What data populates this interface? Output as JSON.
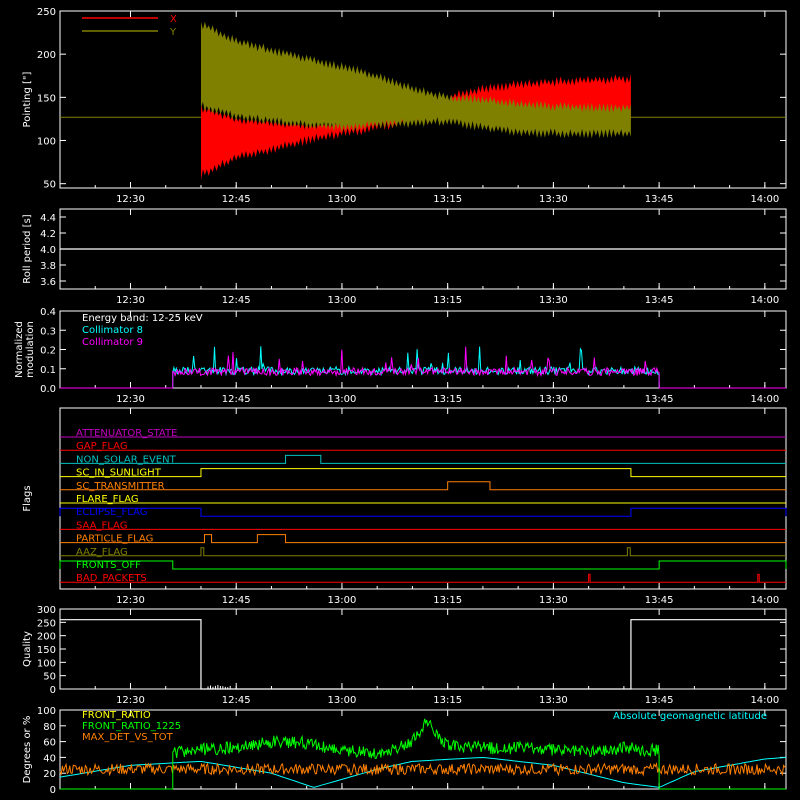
{
  "colors": {
    "background": "#000000",
    "axes": "#ffffff",
    "x": "#ff0000",
    "y": "#808000",
    "cyan": "#00ffff",
    "magenta": "#ff00ff",
    "green": "#00ff00",
    "orange": "#ff8000",
    "yellow": "#ffff00",
    "blue": "#0000ff",
    "red": "#ff0000",
    "olive": "#808000",
    "purple": "#c000c0",
    "white": "#ffffff"
  },
  "chart_data": [
    {
      "id": "pointing",
      "type": "area",
      "ylabel": "Pointing [\"]",
      "ylim": [
        45,
        250
      ],
      "yticks": [
        50,
        100,
        150,
        200,
        250
      ],
      "xlim": [
        "12:20",
        "14:03"
      ],
      "xticks": [
        "12:30",
        "12:45",
        "13:00",
        "13:15",
        "13:30",
        "13:45",
        "14:00"
      ],
      "legend": {
        "placement": "top-left",
        "entries": [
          {
            "name": "X",
            "color": "#ff0000"
          },
          {
            "name": "Y",
            "color": "#808000"
          }
        ]
      },
      "baseline": 127,
      "active_range": [
        "12:40",
        "13:41"
      ],
      "series": [
        {
          "name": "X",
          "t": [
            "12:40",
            "12:45",
            "12:50",
            "12:55",
            "13:00",
            "13:05",
            "13:10",
            "13:15",
            "13:20",
            "13:25",
            "13:30",
            "13:35",
            "13:41"
          ],
          "upper": [
            138,
            125,
            120,
            118,
            122,
            128,
            140,
            150,
            160,
            165,
            168,
            170,
            172
          ],
          "lower": [
            60,
            80,
            90,
            100,
            108,
            115,
            122,
            125,
            126,
            128,
            128,
            128,
            128
          ]
        },
        {
          "name": "Y",
          "t": [
            "12:40",
            "12:45",
            "12:50",
            "12:55",
            "13:00",
            "13:05",
            "13:10",
            "13:15",
            "13:20",
            "13:25",
            "13:30",
            "13:35",
            "13:41"
          ],
          "upper": [
            235,
            215,
            205,
            195,
            185,
            175,
            160,
            150,
            148,
            142,
            140,
            138,
            138
          ],
          "lower": [
            140,
            128,
            122,
            118,
            115,
            118,
            120,
            122,
            115,
            110,
            108,
            108,
            108
          ]
        }
      ]
    },
    {
      "id": "roll",
      "type": "line",
      "ylabel": "Roll period [s]",
      "ylim": [
        3.5,
        4.5
      ],
      "yticks": [
        3.6,
        3.8,
        4.0,
        4.2,
        4.4
      ],
      "value": 4.0
    },
    {
      "id": "modulation",
      "type": "line",
      "ylabel": [
        "Normalized",
        "modulation"
      ],
      "ylim": [
        0,
        0.4
      ],
      "yticks": [
        0.0,
        0.1,
        0.2,
        0.3,
        0.4
      ],
      "annotation": "Energy band: 12-25 keV",
      "active_range": [
        "12:36",
        "13:45"
      ],
      "series": [
        {
          "name": "Collimator 8",
          "color": "#00ffff",
          "level": 0.09
        },
        {
          "name": "Collimator 9",
          "color": "#ff00ff",
          "level": 0.085
        }
      ]
    },
    {
      "id": "flags",
      "type": "line",
      "ylabel": "Flags",
      "flags": [
        {
          "name": "ATTENUATOR_STATE",
          "color": "#c000c0",
          "on": []
        },
        {
          "name": "GAP_FLAG",
          "color": "#ff0000",
          "on": []
        },
        {
          "name": "NON_SOLAR_EVENT",
          "color": "#00c0c0",
          "on": [
            [
              "12:52",
              "12:57"
            ]
          ]
        },
        {
          "name": "SC_IN_SUNLIGHT",
          "color": "#ffff00",
          "on": [
            [
              "12:40",
              "13:41"
            ]
          ]
        },
        {
          "name": "SC_TRANSMITTER",
          "color": "#ff8000",
          "on": [
            [
              "13:15",
              "13:21"
            ]
          ]
        },
        {
          "name": "FLARE_FLAG",
          "color": "#ffff00",
          "on": []
        },
        {
          "name": "ECLIPSE_FLAG",
          "color": "#0000ff",
          "on": [
            [
              "12:20",
              "12:40"
            ],
            [
              "13:41",
              "14:03"
            ]
          ]
        },
        {
          "name": "SAA_FLAG",
          "color": "#ff0000",
          "on": []
        },
        {
          "name": "PARTICLE_FLAG",
          "color": "#ff8000",
          "on": [
            [
              "12:40.5",
              "12:41.5"
            ],
            [
              "12:48",
              "12:52"
            ]
          ]
        },
        {
          "name": "AAZ_FLAG",
          "color": "#808000",
          "on": [
            [
              "12:40",
              "12:40.4"
            ],
            [
              "13:40.5",
              "13:40.9"
            ]
          ]
        },
        {
          "name": "FRONTS_OFF",
          "color": "#00ff00",
          "on": [
            [
              "12:20",
              "12:36"
            ],
            [
              "13:45",
              "14:03"
            ]
          ]
        },
        {
          "name": "BAD_PACKETS",
          "color": "#ff0000",
          "on": [
            [
              "13:35",
              "13:35.2"
            ],
            [
              "13:59",
              "13:59.2"
            ]
          ]
        }
      ]
    },
    {
      "id": "quality",
      "type": "line",
      "ylabel": "Quality",
      "ylim": [
        0,
        300
      ],
      "yticks": [
        0,
        50,
        100,
        150,
        200,
        250,
        300
      ],
      "segments": [
        {
          "t": [
            "12:20",
            "12:40"
          ],
          "value": 260
        },
        {
          "t": [
            "12:40",
            "13:41"
          ],
          "value": 0
        },
        {
          "t": [
            "13:41",
            "14:03"
          ],
          "value": 260
        }
      ]
    },
    {
      "id": "ratios",
      "type": "line",
      "ylabel": "Degrees or %",
      "ylim": [
        0,
        100
      ],
      "yticks": [
        0,
        20,
        40,
        60,
        80,
        100
      ],
      "legend": {
        "placement": "top-left",
        "entries": [
          {
            "name": "FRONT_RATIO",
            "color": "#ffff00"
          },
          {
            "name": "FRONT_RATIO_1225",
            "color": "#00ff00"
          },
          {
            "name": "MAX_DET_VS_TOT",
            "color": "#ff8000"
          }
        ]
      },
      "annotation": {
        "text": "Absolute geomagnetic latitude",
        "color": "#00ffff"
      },
      "series": [
        {
          "name": "FRONT_RATIO_1225",
          "t": [
            "12:36",
            "12:40",
            "12:45",
            "12:50",
            "12:55",
            "13:00",
            "13:05",
            "13:06",
            "13:10",
            "13:12",
            "13:15",
            "13:20",
            "13:25",
            "13:30",
            "13:35",
            "13:40",
            "13:45"
          ],
          "values": [
            45,
            50,
            52,
            60,
            58,
            48,
            45,
            45,
            60,
            85,
            55,
            52,
            52,
            50,
            48,
            52,
            48
          ]
        },
        {
          "name": "MAX_DET_VS_TOT",
          "t": [
            "12:20",
            "14:03"
          ],
          "values": [
            25,
            25
          ]
        },
        {
          "name": "Absolute geomagnetic latitude",
          "t": [
            "12:20",
            "12:30",
            "12:40",
            "12:50",
            "12:56",
            "13:05",
            "13:10",
            "13:20",
            "13:30",
            "13:40",
            "13:45",
            "13:50",
            "14:00",
            "14:03"
          ],
          "values": [
            15,
            30,
            35,
            20,
            2,
            25,
            35,
            40,
            30,
            8,
            2,
            22,
            38,
            40
          ]
        }
      ]
    }
  ]
}
